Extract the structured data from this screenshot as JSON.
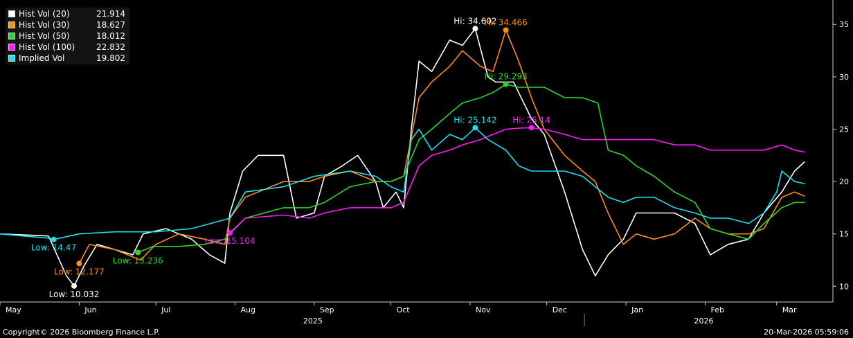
{
  "chart_data": {
    "type": "line",
    "title": "",
    "ylim": [
      8.5,
      37
    ],
    "yticks": [
      10,
      15,
      20,
      25,
      30,
      35
    ],
    "xrange": [
      "2025-05-01",
      "2026-03-23"
    ],
    "month_ticks": [
      {
        "label": "May",
        "date": "2025-05-01"
      },
      {
        "label": "Jun",
        "date": "2025-06-01"
      },
      {
        "label": "Jul",
        "date": "2025-07-01"
      },
      {
        "label": "Aug",
        "date": "2025-08-01"
      },
      {
        "label": "Sep",
        "date": "2025-09-01"
      },
      {
        "label": "Oct",
        "date": "2025-10-01"
      },
      {
        "label": "Nov",
        "date": "2025-11-01"
      },
      {
        "label": "Dec",
        "date": "2025-12-01"
      },
      {
        "label": "Jan",
        "date": "2026-01-01"
      },
      {
        "label": "Feb",
        "date": "2026-02-01"
      },
      {
        "label": "Mar",
        "date": "2026-03-01"
      }
    ],
    "year_labels": [
      {
        "label": "2025",
        "date": "2025-09-01"
      },
      {
        "label": "2026",
        "date": "2026-02-01"
      }
    ],
    "grid": false,
    "legend_position": "top-left",
    "series": [
      {
        "name": "Hist Vol (20)",
        "last": "21.914",
        "color": "#ffffff",
        "points": [
          [
            "2025-05-01",
            15.0
          ],
          [
            "2025-05-20",
            14.8
          ],
          [
            "2025-05-27",
            11.0
          ],
          [
            "2025-05-30",
            10.03
          ],
          [
            "2025-06-03",
            12.0
          ],
          [
            "2025-06-08",
            14.0
          ],
          [
            "2025-06-15",
            13.5
          ],
          [
            "2025-06-22",
            13.0
          ],
          [
            "2025-06-26",
            15.0
          ],
          [
            "2025-07-05",
            15.5
          ],
          [
            "2025-07-15",
            14.5
          ],
          [
            "2025-07-22",
            13.0
          ],
          [
            "2025-07-28",
            12.2
          ],
          [
            "2025-07-30",
            17.0
          ],
          [
            "2025-08-04",
            21.0
          ],
          [
            "2025-08-10",
            22.5
          ],
          [
            "2025-08-20",
            22.5
          ],
          [
            "2025-08-25",
            16.5
          ],
          [
            "2025-09-01",
            17.0
          ],
          [
            "2025-09-05",
            20.5
          ],
          [
            "2025-09-12",
            21.5
          ],
          [
            "2025-09-18",
            22.5
          ],
          [
            "2025-09-25",
            20.0
          ],
          [
            "2025-09-28",
            17.5
          ],
          [
            "2025-10-03",
            19.0
          ],
          [
            "2025-10-06",
            17.5
          ],
          [
            "2025-10-09",
            25.0
          ],
          [
            "2025-10-12",
            31.5
          ],
          [
            "2025-10-17",
            30.5
          ],
          [
            "2025-10-24",
            33.5
          ],
          [
            "2025-10-29",
            33.0
          ],
          [
            "2025-11-03",
            34.6
          ],
          [
            "2025-11-08",
            30.0
          ],
          [
            "2025-11-11",
            29.5
          ],
          [
            "2025-11-18",
            29.5
          ],
          [
            "2025-11-25",
            26.0
          ],
          [
            "2025-11-30",
            24.5
          ],
          [
            "2025-12-08",
            19.0
          ],
          [
            "2025-12-15",
            13.5
          ],
          [
            "2025-12-20",
            11.0
          ],
          [
            "2025-12-25",
            13.0
          ],
          [
            "2025-12-31",
            14.5
          ],
          [
            "2026-01-05",
            17.0
          ],
          [
            "2026-01-12",
            17.0
          ],
          [
            "2026-01-20",
            17.0
          ],
          [
            "2026-01-28",
            16.0
          ],
          [
            "2026-02-03",
            13.0
          ],
          [
            "2026-02-10",
            14.0
          ],
          [
            "2026-02-18",
            14.5
          ],
          [
            "2026-02-24",
            17.0
          ],
          [
            "2026-03-03",
            19.0
          ],
          [
            "2026-03-08",
            21.0
          ],
          [
            "2026-03-12",
            21.9
          ]
        ]
      },
      {
        "name": "Hist Vol (30)",
        "last": "18.627",
        "color": "#ff8c1a",
        "points": [
          [
            "2025-06-01",
            12.18
          ],
          [
            "2025-06-05",
            14.0
          ],
          [
            "2025-06-15",
            13.5
          ],
          [
            "2025-06-25",
            12.5
          ],
          [
            "2025-07-01",
            14.0
          ],
          [
            "2025-07-10",
            15.0
          ],
          [
            "2025-07-20",
            14.5
          ],
          [
            "2025-07-28",
            14.0
          ],
          [
            "2025-07-30",
            16.5
          ],
          [
            "2025-08-05",
            18.5
          ],
          [
            "2025-08-20",
            20.0
          ],
          [
            "2025-08-30",
            20.0
          ],
          [
            "2025-09-05",
            20.5
          ],
          [
            "2025-09-15",
            21.0
          ],
          [
            "2025-09-25",
            20.0
          ],
          [
            "2025-10-01",
            20.0
          ],
          [
            "2025-10-06",
            20.5
          ],
          [
            "2025-10-12",
            28.0
          ],
          [
            "2025-10-17",
            29.5
          ],
          [
            "2025-10-24",
            31.0
          ],
          [
            "2025-10-29",
            32.5
          ],
          [
            "2025-11-05",
            31.0
          ],
          [
            "2025-11-10",
            30.5
          ],
          [
            "2025-11-15",
            34.47
          ],
          [
            "2025-11-20",
            31.5
          ],
          [
            "2025-11-25",
            28.0
          ],
          [
            "2025-11-30",
            25.0
          ],
          [
            "2025-12-08",
            22.5
          ],
          [
            "2025-12-15",
            21.0
          ],
          [
            "2025-12-20",
            20.0
          ],
          [
            "2025-12-25",
            17.0
          ],
          [
            "2025-12-31",
            14.0
          ],
          [
            "2026-01-05",
            15.0
          ],
          [
            "2026-01-12",
            14.5
          ],
          [
            "2026-01-20",
            15.0
          ],
          [
            "2026-01-28",
            16.5
          ],
          [
            "2026-02-03",
            15.5
          ],
          [
            "2026-02-10",
            15.0
          ],
          [
            "2026-02-18",
            15.0
          ],
          [
            "2026-02-24",
            15.5
          ],
          [
            "2026-03-03",
            18.5
          ],
          [
            "2026-03-08",
            19.0
          ],
          [
            "2026-03-12",
            18.6
          ]
        ]
      },
      {
        "name": "Hist Vol (50)",
        "last": "18.012",
        "color": "#2bd62b",
        "points": [
          [
            "2025-06-24",
            13.24
          ],
          [
            "2025-06-30",
            13.8
          ],
          [
            "2025-07-10",
            13.8
          ],
          [
            "2025-07-20",
            14.0
          ],
          [
            "2025-07-28",
            14.5
          ],
          [
            "2025-07-30",
            15.0
          ],
          [
            "2025-08-05",
            16.5
          ],
          [
            "2025-08-20",
            17.5
          ],
          [
            "2025-08-30",
            17.5
          ],
          [
            "2025-09-05",
            18.0
          ],
          [
            "2025-09-15",
            19.5
          ],
          [
            "2025-09-25",
            20.0
          ],
          [
            "2025-10-01",
            20.0
          ],
          [
            "2025-10-06",
            20.5
          ],
          [
            "2025-10-12",
            24.0
          ],
          [
            "2025-10-17",
            25.0
          ],
          [
            "2025-10-24",
            26.5
          ],
          [
            "2025-10-29",
            27.5
          ],
          [
            "2025-11-05",
            28.0
          ],
          [
            "2025-11-10",
            28.5
          ],
          [
            "2025-11-15",
            29.29
          ],
          [
            "2025-11-20",
            29.0
          ],
          [
            "2025-11-25",
            29.0
          ],
          [
            "2025-11-30",
            29.0
          ],
          [
            "2025-12-08",
            28.0
          ],
          [
            "2025-12-15",
            28.0
          ],
          [
            "2025-12-21",
            27.5
          ],
          [
            "2025-12-25",
            23.0
          ],
          [
            "2025-12-31",
            22.5
          ],
          [
            "2026-01-05",
            21.5
          ],
          [
            "2026-01-12",
            20.5
          ],
          [
            "2026-01-20",
            19.0
          ],
          [
            "2026-01-28",
            18.0
          ],
          [
            "2026-02-03",
            15.5
          ],
          [
            "2026-02-10",
            15.0
          ],
          [
            "2026-02-18",
            14.5
          ],
          [
            "2026-02-24",
            16.0
          ],
          [
            "2026-03-03",
            17.5
          ],
          [
            "2026-03-08",
            18.0
          ],
          [
            "2026-03-12",
            18.0
          ]
        ]
      },
      {
        "name": "Hist Vol (100)",
        "last": "22.832",
        "color": "#ff1aff",
        "points": [
          [
            "2025-07-30",
            15.1
          ],
          [
            "2025-08-05",
            16.5
          ],
          [
            "2025-08-20",
            16.8
          ],
          [
            "2025-08-30",
            16.5
          ],
          [
            "2025-09-05",
            17.0
          ],
          [
            "2025-09-15",
            17.5
          ],
          [
            "2025-09-25",
            17.5
          ],
          [
            "2025-10-01",
            17.5
          ],
          [
            "2025-10-06",
            18.0
          ],
          [
            "2025-10-12",
            21.5
          ],
          [
            "2025-10-17",
            22.5
          ],
          [
            "2025-10-24",
            23.0
          ],
          [
            "2025-10-29",
            23.5
          ],
          [
            "2025-11-05",
            24.0
          ],
          [
            "2025-11-10",
            24.5
          ],
          [
            "2025-11-15",
            25.0
          ],
          [
            "2025-11-20",
            25.1
          ],
          [
            "2025-11-25",
            25.14
          ],
          [
            "2025-11-30",
            25.0
          ],
          [
            "2025-12-08",
            24.5
          ],
          [
            "2025-12-15",
            24.0
          ],
          [
            "2025-12-25",
            24.0
          ],
          [
            "2025-12-31",
            24.0
          ],
          [
            "2026-01-05",
            24.0
          ],
          [
            "2026-01-12",
            24.0
          ],
          [
            "2026-01-20",
            23.5
          ],
          [
            "2026-01-28",
            23.5
          ],
          [
            "2026-02-03",
            23.0
          ],
          [
            "2026-02-10",
            23.0
          ],
          [
            "2026-02-18",
            23.0
          ],
          [
            "2026-02-24",
            23.0
          ],
          [
            "2026-03-03",
            23.5
          ],
          [
            "2026-03-08",
            23.0
          ],
          [
            "2026-03-12",
            22.8
          ]
        ]
      },
      {
        "name": "Implied Vol",
        "last": "19.802",
        "color": "#1ae0f0",
        "points": [
          [
            "2025-05-01",
            15.0
          ],
          [
            "2025-05-10",
            14.8
          ],
          [
            "2025-05-20",
            14.6
          ],
          [
            "2025-05-22",
            14.47
          ],
          [
            "2025-06-01",
            15.0
          ],
          [
            "2025-06-15",
            15.2
          ],
          [
            "2025-07-01",
            15.2
          ],
          [
            "2025-07-15",
            15.5
          ],
          [
            "2025-07-30",
            16.5
          ],
          [
            "2025-08-05",
            19.0
          ],
          [
            "2025-08-20",
            19.5
          ],
          [
            "2025-09-01",
            20.5
          ],
          [
            "2025-09-15",
            21.0
          ],
          [
            "2025-09-25",
            20.5
          ],
          [
            "2025-10-01",
            19.5
          ],
          [
            "2025-10-06",
            19.0
          ],
          [
            "2025-10-09",
            24.0
          ],
          [
            "2025-10-12",
            25.0
          ],
          [
            "2025-10-17",
            23.0
          ],
          [
            "2025-10-24",
            24.5
          ],
          [
            "2025-10-29",
            24.0
          ],
          [
            "2025-11-03",
            25.14
          ],
          [
            "2025-11-08",
            24.0
          ],
          [
            "2025-11-15",
            23.0
          ],
          [
            "2025-11-20",
            21.5
          ],
          [
            "2025-11-25",
            21.0
          ],
          [
            "2025-11-30",
            21.0
          ],
          [
            "2025-12-08",
            21.0
          ],
          [
            "2025-12-15",
            20.5
          ],
          [
            "2025-12-20",
            19.5
          ],
          [
            "2025-12-25",
            18.5
          ],
          [
            "2025-12-31",
            18.0
          ],
          [
            "2026-01-05",
            18.5
          ],
          [
            "2026-01-12",
            18.5
          ],
          [
            "2026-01-20",
            17.5
          ],
          [
            "2026-01-28",
            17.0
          ],
          [
            "2026-02-03",
            16.5
          ],
          [
            "2026-02-10",
            16.5
          ],
          [
            "2026-02-18",
            16.0
          ],
          [
            "2026-02-24",
            17.0
          ],
          [
            "2026-03-01",
            19.0
          ],
          [
            "2026-03-03",
            21.0
          ],
          [
            "2026-03-08",
            20.0
          ],
          [
            "2026-03-12",
            19.8
          ]
        ]
      }
    ],
    "annotations": [
      {
        "series": 0,
        "kind": "low",
        "label": "Low: 10.032",
        "date": "2025-05-30",
        "value": 10.032,
        "anchor": "below"
      },
      {
        "series": 0,
        "kind": "high",
        "label": "Hi: 34.602",
        "date": "2025-11-03",
        "value": 34.602,
        "anchor": "above"
      },
      {
        "series": 1,
        "kind": "low",
        "label": "Low: 12.177",
        "date": "2025-06-01",
        "value": 12.177,
        "anchor": "below"
      },
      {
        "series": 1,
        "kind": "high",
        "label": "Hi: 34.466",
        "date": "2025-11-15",
        "value": 34.466,
        "anchor": "above"
      },
      {
        "series": 2,
        "kind": "low",
        "label": "Low: 13.236",
        "date": "2025-06-24",
        "value": 13.236,
        "anchor": "below"
      },
      {
        "series": 2,
        "kind": "high",
        "label": "Hi: 29.293",
        "date": "2025-11-15",
        "value": 29.293,
        "anchor": "above"
      },
      {
        "series": 3,
        "kind": "low",
        "label": "Low: 15.104",
        "date": "2025-07-30",
        "value": 15.104,
        "anchor": "below"
      },
      {
        "series": 3,
        "kind": "high",
        "label": "Hi: 25.14",
        "date": "2025-11-25",
        "value": 25.14,
        "anchor": "above"
      },
      {
        "series": 4,
        "kind": "low",
        "label": "Low: 14.47",
        "date": "2025-05-22",
        "value": 14.47,
        "anchor": "below"
      },
      {
        "series": 4,
        "kind": "high",
        "label": "Hi: 25.142",
        "date": "2025-11-03",
        "value": 25.142,
        "anchor": "above"
      }
    ]
  },
  "footer": {
    "copyright": "Copyright© 2026 Bloomberg Finance L.P.",
    "timestamp": "20-Mar-2026 05:59:06"
  }
}
